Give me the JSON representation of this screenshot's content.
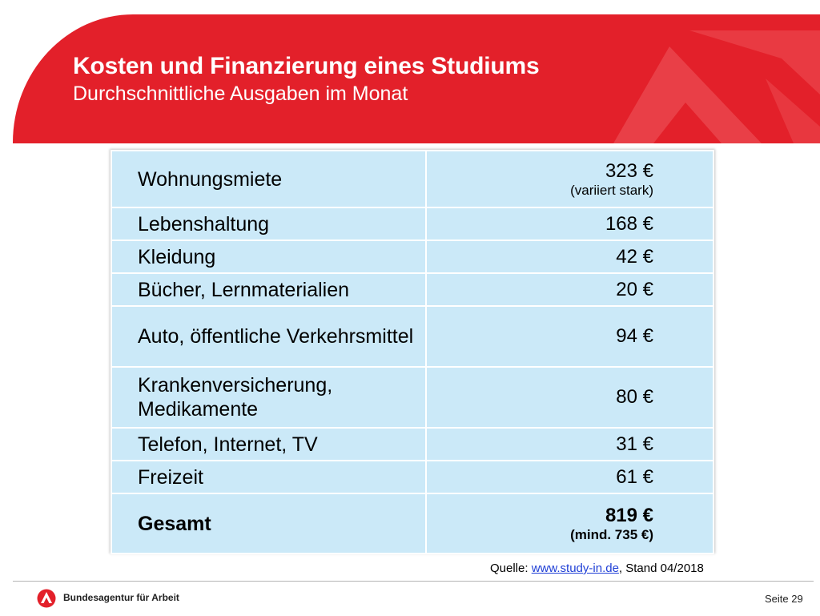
{
  "header": {
    "title": "Kosten und Finanzierung eines Studiums",
    "subtitle": "Durchschnittliche Ausgaben im Monat"
  },
  "table": {
    "rows": [
      {
        "label": "Wohnungsmiete",
        "value": "323 €",
        "note": "(variiert stark)"
      },
      {
        "label": "Lebenshaltung",
        "value": "168 €"
      },
      {
        "label": "Kleidung",
        "value": "42 €"
      },
      {
        "label": "Bücher, Lernmaterialien",
        "value": "20 €"
      },
      {
        "label": "Auto, öffentliche Verkehrsmittel",
        "value": "94 €"
      },
      {
        "label": "Krankenversicherung, Medikamente",
        "value": "80 €"
      },
      {
        "label": "Telefon, Internet, TV",
        "value": "31 €"
      },
      {
        "label": "Freizeit",
        "value": "61 €"
      }
    ],
    "total": {
      "label": "Gesamt",
      "value": "819 €",
      "note": "(mind. 735 €)"
    }
  },
  "source": {
    "prefix": "Quelle: ",
    "link": "www.study-in.de",
    "suffix": ", Stand 04/2018"
  },
  "footer": {
    "brand": "Bundesagentur für Arbeit",
    "page": "Seite 29"
  },
  "colors": {
    "brand_red": "#e3202a",
    "table_fill": "#cbe9f8",
    "link": "#1f3fd6"
  },
  "icons": {
    "logo": "ba-logo-icon"
  }
}
